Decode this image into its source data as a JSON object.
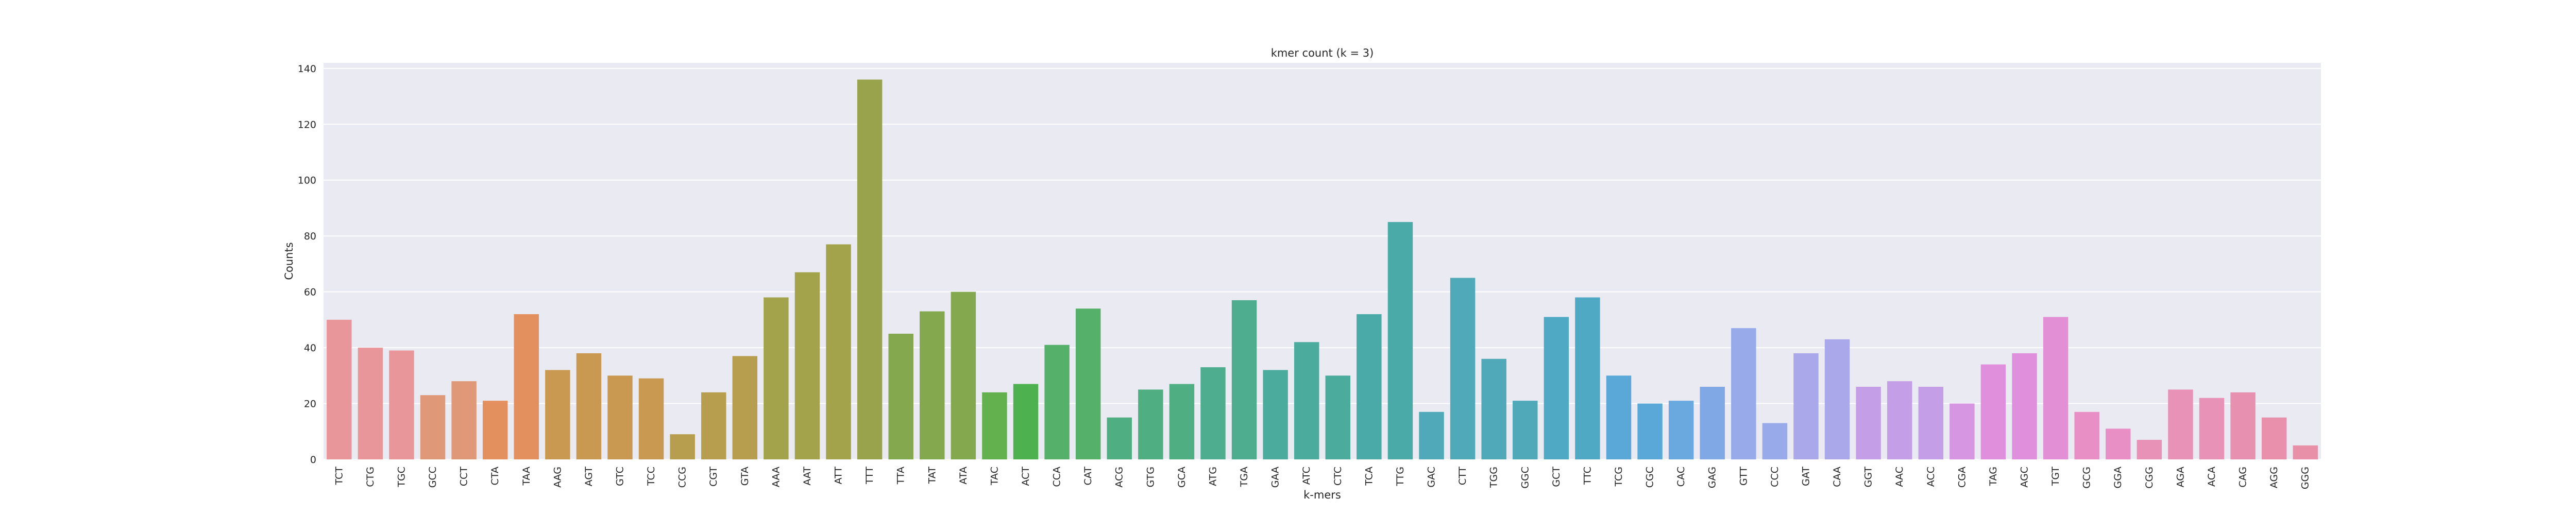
{
  "chart_data": {
    "type": "bar",
    "title": "kmer count (k = 3)",
    "xlabel": "k-mers",
    "ylabel": "Counts",
    "ylim": [
      0,
      142
    ],
    "yticks": [
      0,
      20,
      40,
      60,
      80,
      100,
      120,
      140
    ],
    "grid": true,
    "background": "#eaeaf2",
    "categories": [
      "TCT",
      "CTG",
      "TGC",
      "GCC",
      "CCT",
      "CTA",
      "TAA",
      "AAG",
      "AGT",
      "GTC",
      "TCC",
      "CCG",
      "CGT",
      "GTA",
      "AAA",
      "AAT",
      "ATT",
      "TTT",
      "TTA",
      "TAT",
      "ATA",
      "TAC",
      "ACT",
      "CCA",
      "CAT",
      "ACG",
      "GTG",
      "GCA",
      "ATG",
      "TGA",
      "GAA",
      "ATC",
      "CTC",
      "TCA",
      "TTG",
      "GAC",
      "CTT",
      "TGG",
      "GGC",
      "GCT",
      "TTC",
      "TCG",
      "CGC",
      "CAC",
      "GAG",
      "GTT",
      "CCC",
      "GAT",
      "CAA",
      "GGT",
      "AAC",
      "ACC",
      "CGA",
      "TAG",
      "AGC",
      "TGT",
      "GCG",
      "GGA",
      "CGG",
      "AGA",
      "ACA",
      "CAG",
      "AGG",
      "GGG"
    ],
    "values": [
      50,
      40,
      39,
      23,
      28,
      21,
      52,
      32,
      38,
      30,
      29,
      9,
      24,
      37,
      58,
      67,
      77,
      136,
      45,
      53,
      60,
      24,
      27,
      41,
      54,
      15,
      25,
      27,
      33,
      57,
      32,
      42,
      30,
      52,
      85,
      17,
      65,
      36,
      21,
      51,
      58,
      30,
      20,
      21,
      26,
      47,
      13,
      38,
      43,
      26,
      28,
      26,
      20,
      34,
      38,
      51,
      17,
      11,
      7,
      25,
      22,
      24,
      15,
      5
    ],
    "colors": [
      "#e8969a",
      "#e8969a",
      "#e8969a",
      "#df9978",
      "#df9978",
      "#e3905e",
      "#e3905e",
      "#c99952",
      "#c99952",
      "#c99952",
      "#c99952",
      "#b69e4e",
      "#b69e4e",
      "#b69e4e",
      "#a3a34c",
      "#a3a34c",
      "#a3a34c",
      "#99a34c",
      "#83a84e",
      "#83a84e",
      "#83a84e",
      "#62b04e",
      "#4cb14e",
      "#55b06a",
      "#55b06a",
      "#4fae82",
      "#4fae82",
      "#4fae82",
      "#4dad8e",
      "#4dad8e",
      "#4bac9e",
      "#4bac9e",
      "#4bac9e",
      "#4aaaa8",
      "#4aaaa8",
      "#4fa9b8",
      "#4fa9b8",
      "#4fa9b8",
      "#4fa9b8",
      "#4fa9c4",
      "#4fa9c4",
      "#5aa8d8",
      "#5aa8d8",
      "#6aa8e0",
      "#80a8e4",
      "#98aaea",
      "#98aaea",
      "#aaa8ea",
      "#aaa8ea",
      "#c49ee6",
      "#c49ee6",
      "#c49ee6",
      "#d696e2",
      "#e08fdc",
      "#e08fdc",
      "#e38fd6",
      "#e890c6",
      "#e890c6",
      "#e892b8",
      "#e892b8",
      "#e892b8",
      "#e890b0",
      "#e890ac",
      "#e890a8"
    ]
  }
}
